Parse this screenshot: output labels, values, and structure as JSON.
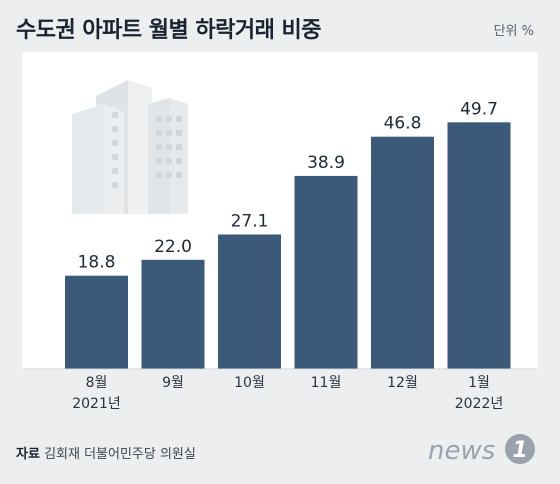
{
  "header": {
    "title": "수도권 아파트 월별 하락거래 비중",
    "unit": "단위 %"
  },
  "chart_data": {
    "type": "bar",
    "title": "수도권 아파트 월별 하락거래 비중",
    "unit": "단위 %",
    "categories": [
      "8월",
      "9월",
      "10월",
      "11월",
      "12월",
      "1월"
    ],
    "category_years": [
      "2021년",
      "",
      "",
      "",
      "",
      "2022년"
    ],
    "values": [
      18.8,
      22.0,
      27.1,
      38.9,
      46.8,
      49.7
    ],
    "value_labels": [
      "18.8",
      "22.0",
      "27.1",
      "38.9",
      "46.8",
      "49.7"
    ],
    "ylim": [
      0,
      55
    ],
    "bar_color": "#3b5a7a",
    "grid": false
  },
  "footer": {
    "source_label": "자료",
    "source_text": "김회재 더불어민주당 의원실",
    "logo_text": "news",
    "logo_mark": "1"
  }
}
